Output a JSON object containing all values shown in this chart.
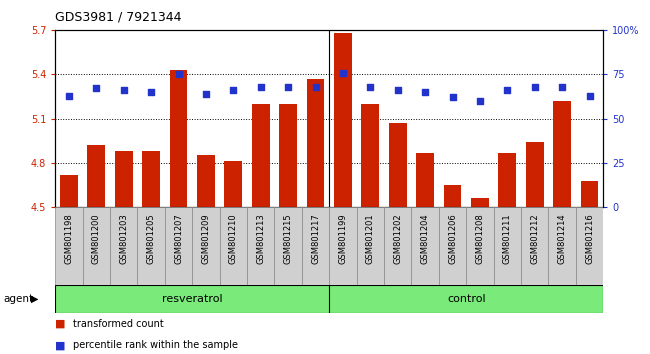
{
  "title": "GDS3981 / 7921344",
  "samples": [
    "GSM801198",
    "GSM801200",
    "GSM801203",
    "GSM801205",
    "GSM801207",
    "GSM801209",
    "GSM801210",
    "GSM801213",
    "GSM801215",
    "GSM801217",
    "GSM801199",
    "GSM801201",
    "GSM801202",
    "GSM801204",
    "GSM801206",
    "GSM801208",
    "GSM801211",
    "GSM801212",
    "GSM801214",
    "GSM801216"
  ],
  "bar_values": [
    4.72,
    4.92,
    4.88,
    4.88,
    5.43,
    4.85,
    4.81,
    5.2,
    5.2,
    5.37,
    5.68,
    5.2,
    5.07,
    4.87,
    4.65,
    4.56,
    4.87,
    4.94,
    5.22,
    4.68
  ],
  "dot_values": [
    63,
    67,
    66,
    65,
    75,
    64,
    66,
    68,
    68,
    68,
    76,
    68,
    66,
    65,
    62,
    60,
    66,
    68,
    68,
    63
  ],
  "ylim_left": [
    4.5,
    5.7
  ],
  "ylim_right": [
    0,
    100
  ],
  "bar_color": "#cc2200",
  "dot_color": "#2233cc",
  "resveratrol_count": 10,
  "control_count": 10,
  "resveratrol_label": "resveratrol",
  "control_label": "control",
  "agent_label": "agent",
  "legend_bar": "transformed count",
  "legend_dot": "percentile rank within the sample",
  "yticks_left": [
    4.5,
    4.8,
    5.1,
    5.4,
    5.7
  ],
  "yticks_right": [
    0,
    25,
    50,
    75,
    100
  ],
  "ytick_labels_right": [
    "0",
    "25",
    "50",
    "75",
    "100%"
  ],
  "background_color": "#ffffff",
  "panel_bg": "#d0d0d0",
  "resv_bg": "#7aeb7a",
  "ctrl_bg": "#7aeb7a",
  "title_fontsize": 9,
  "tick_fontsize": 7,
  "label_fontsize": 6,
  "group_fontsize": 8
}
